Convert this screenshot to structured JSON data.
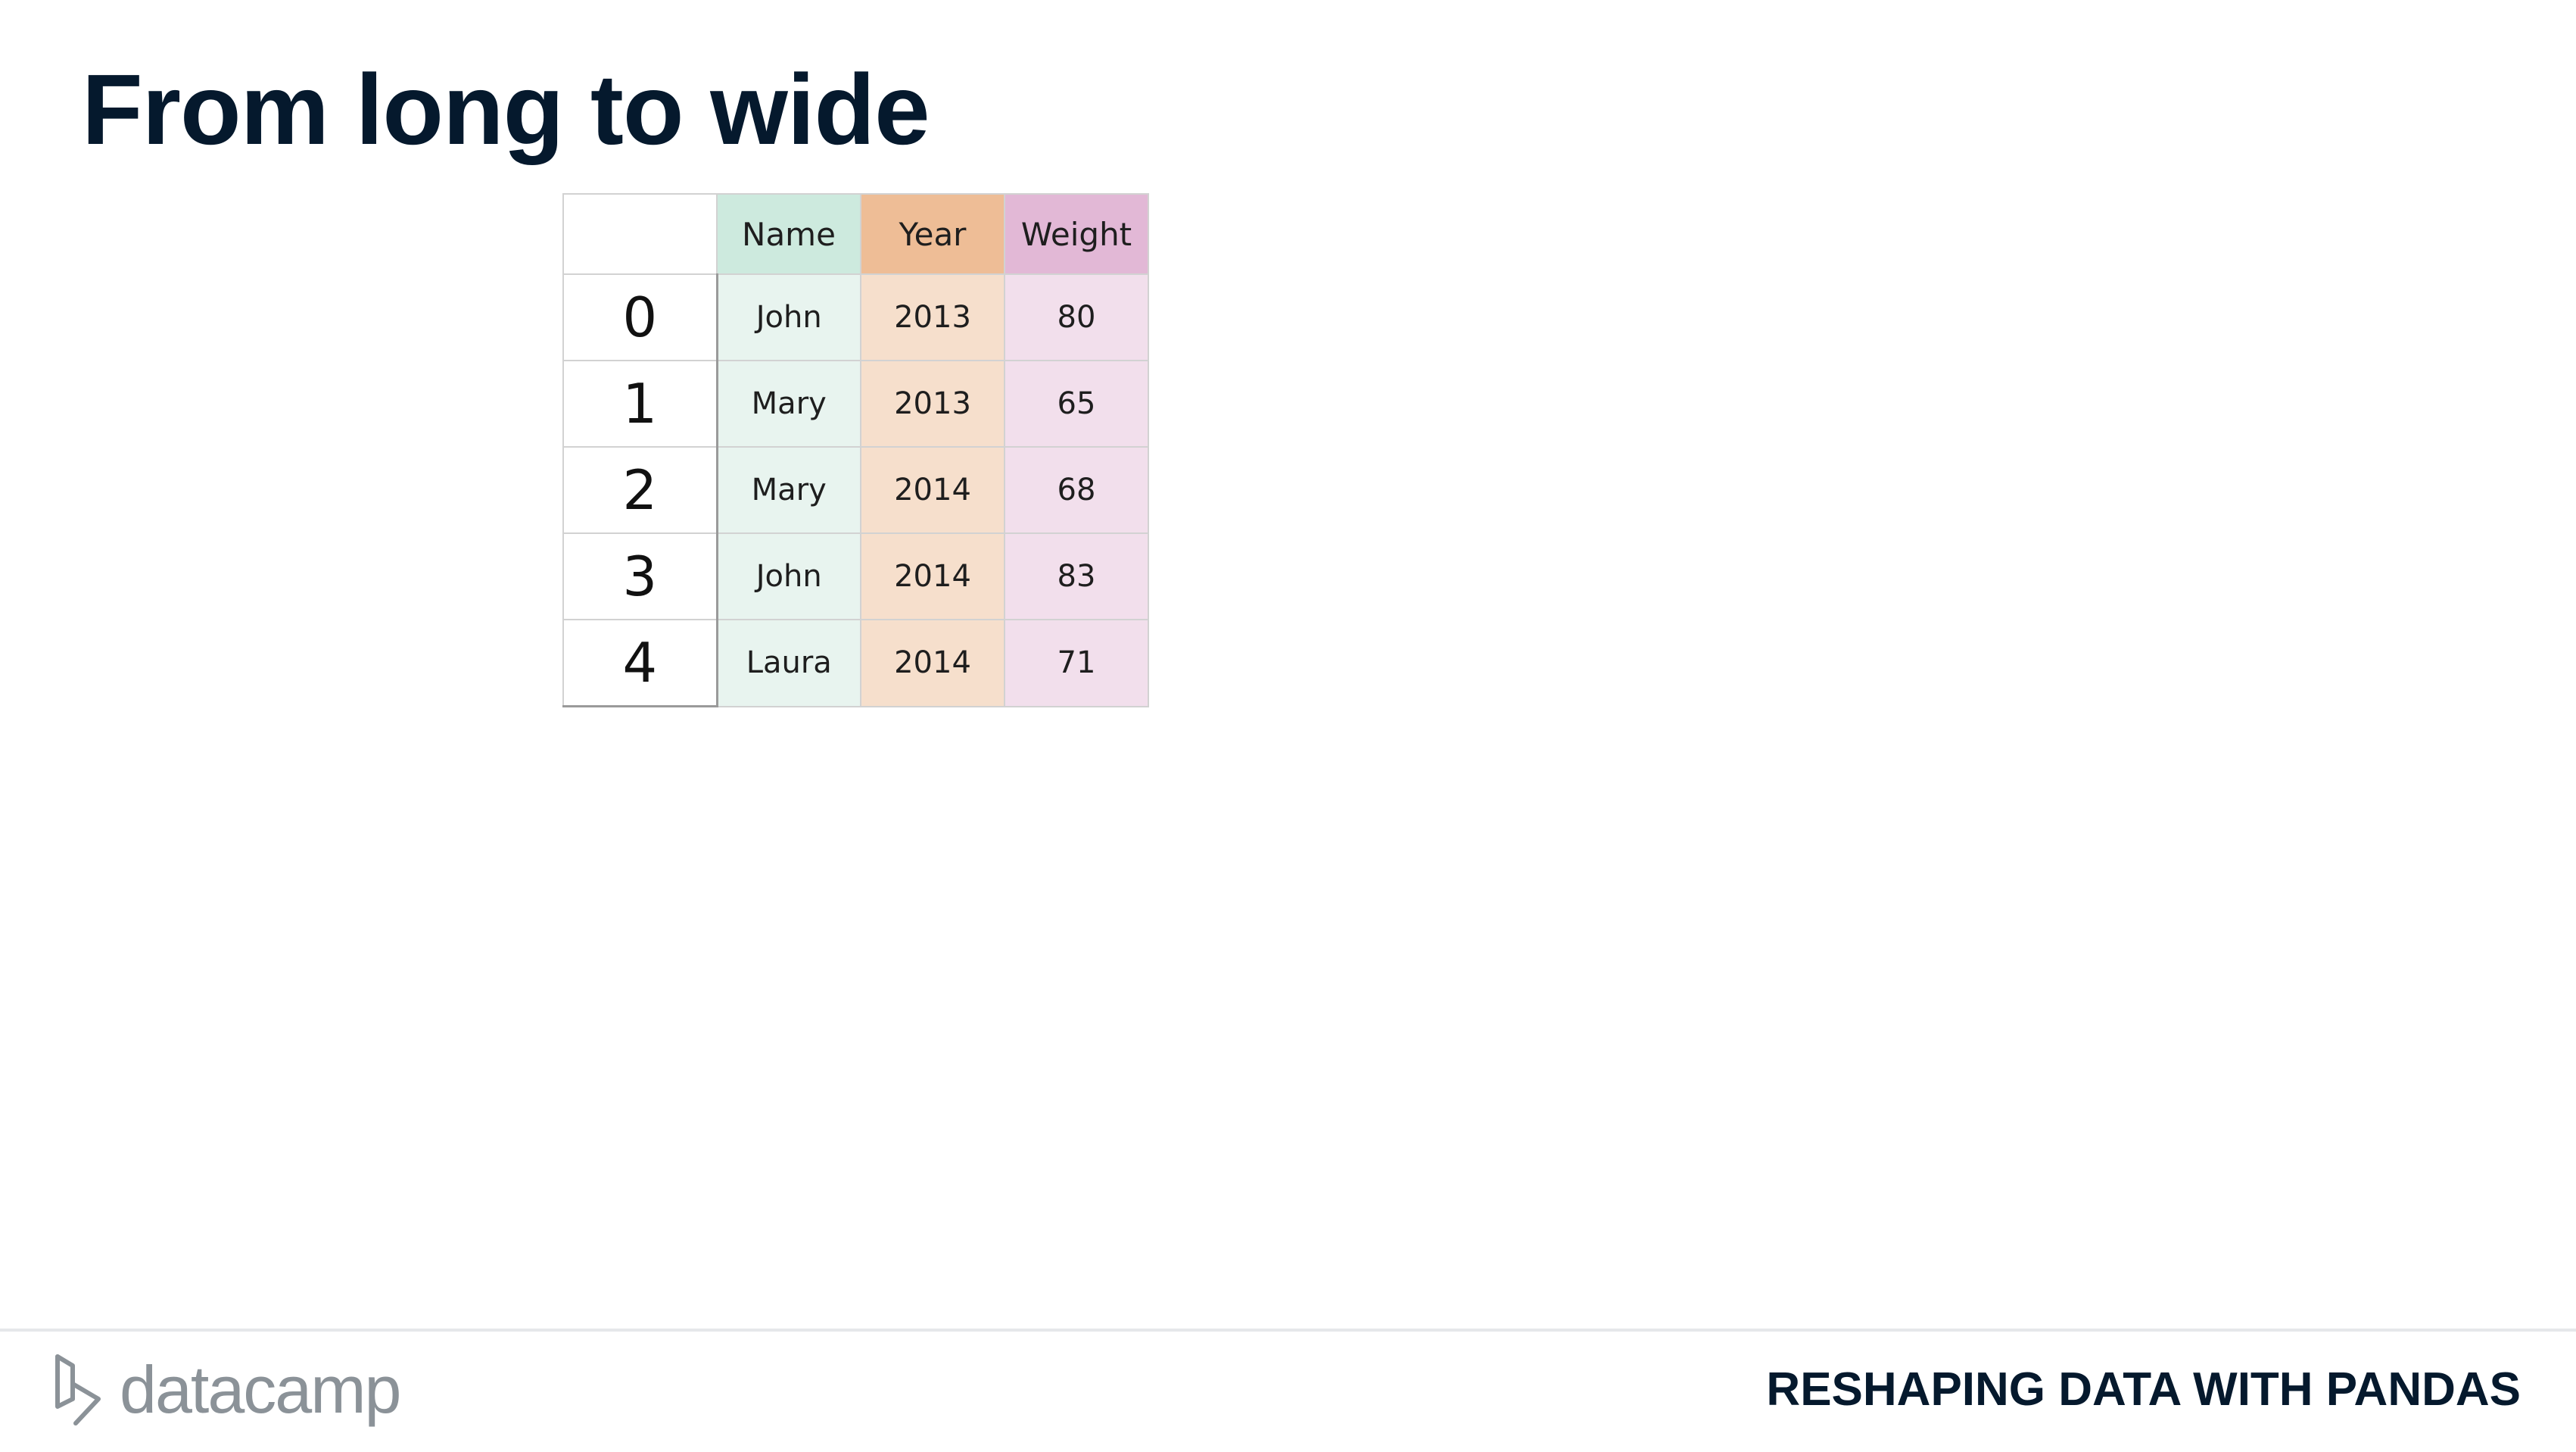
{
  "slide": {
    "title": "From long to wide"
  },
  "table": {
    "columns": [
      {
        "label": "Name",
        "header_color": "#cdeade",
        "cell_color": "#e8f4ef"
      },
      {
        "label": "Year",
        "header_color": "#eebd96",
        "cell_color": "#f6dfcc"
      },
      {
        "label": "Weight",
        "header_color": "#e2b8d6",
        "cell_color": "#f2dfec"
      }
    ],
    "rows": [
      {
        "index": "0",
        "cells": [
          "John",
          "2013",
          "80"
        ]
      },
      {
        "index": "1",
        "cells": [
          "Mary",
          "2013",
          "65"
        ]
      },
      {
        "index": "2",
        "cells": [
          "Mary",
          "2014",
          "68"
        ]
      },
      {
        "index": "3",
        "cells": [
          "John",
          "2014",
          "83"
        ]
      },
      {
        "index": "4",
        "cells": [
          "Laura",
          "2014",
          "71"
        ]
      }
    ]
  },
  "footer": {
    "logo_text": "datacamp",
    "logo_icon": "datacamp-logo-icon",
    "course_title": "RESHAPING DATA WITH PANDAS"
  },
  "colors": {
    "title": "#05192d",
    "logo": "#8b9298",
    "rule": "#e5e7ea"
  }
}
